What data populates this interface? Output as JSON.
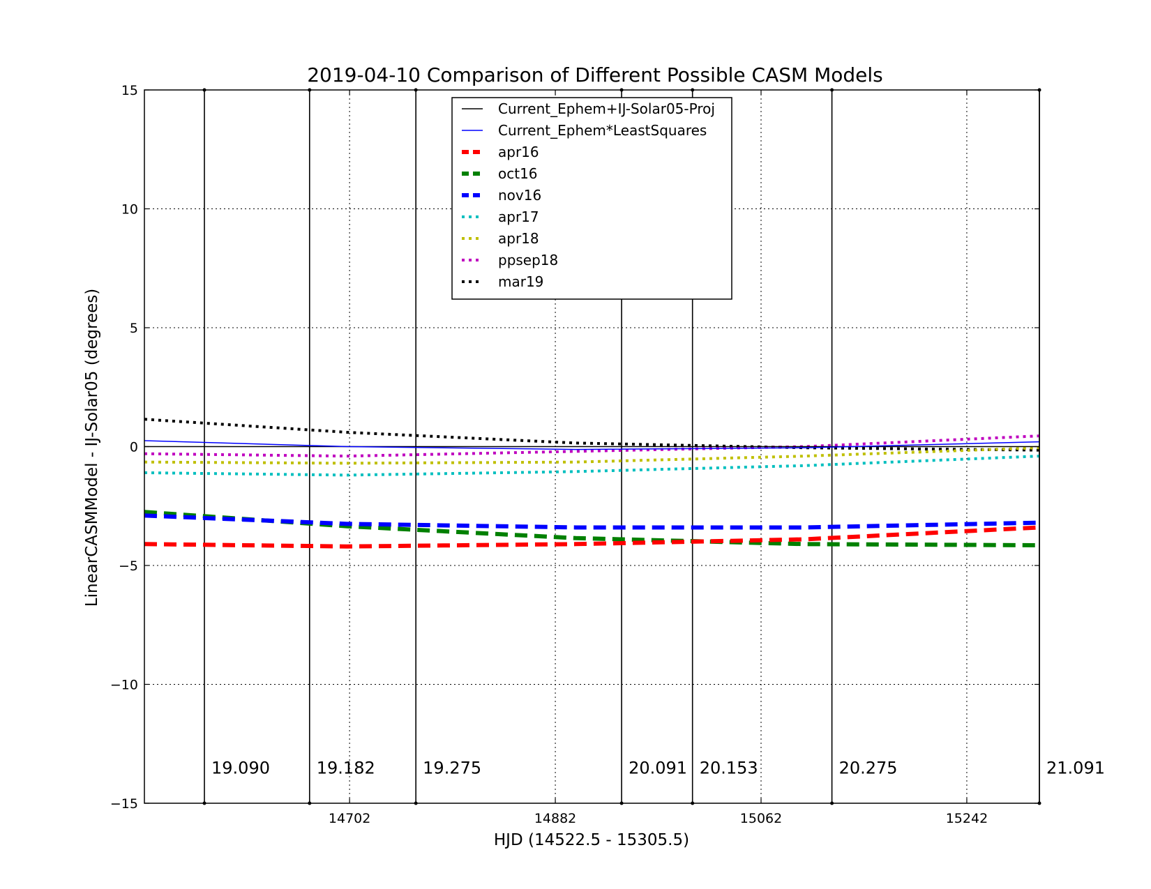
{
  "chart_data": {
    "type": "line",
    "title": "2019-04-10 Comparison of Different Possible CASM Models",
    "xlabel": "HJD (14522.5 - 15305.5)",
    "ylabel": "LinearCASMModel - IJ-Solar05 (degrees)",
    "xlim": [
      14522.5,
      15305.5
    ],
    "ylim": [
      -15,
      15
    ],
    "grid": true,
    "legend_position": "upper center",
    "x_ticks": [
      14702,
      14882,
      15062,
      15242
    ],
    "x_tick_labels": [
      "14702",
      "14882",
      "15062",
      "15242"
    ],
    "y_ticks": [
      -15,
      -10,
      -5,
      0,
      5,
      10,
      15
    ],
    "y_tick_labels": [
      "−15",
      "−10",
      "−5",
      "0",
      "5",
      "10",
      "15"
    ],
    "vertical_markers": [
      {
        "x": 14575,
        "label": "19.090"
      },
      {
        "x": 14667,
        "label": "19.182"
      },
      {
        "x": 14760,
        "label": "19.275"
      },
      {
        "x": 14940,
        "label": "20.091"
      },
      {
        "x": 15002,
        "label": "20.153"
      },
      {
        "x": 15124,
        "label": "20.275"
      },
      {
        "x": 15305.5,
        "label": "21.091"
      }
    ],
    "x": [
      14522.5,
      14700,
      14900,
      15100,
      15305.5
    ],
    "series": [
      {
        "name": "Current_Ephem+IJ-Solar05-Proj",
        "color": "#000000",
        "style": "solid",
        "values": [
          0.0,
          0.0,
          0.0,
          0.0,
          0.0
        ]
      },
      {
        "name": "Current_Ephem*LeastSquares",
        "color": "#0000ff",
        "style": "solid",
        "values": [
          0.25,
          0.0,
          -0.12,
          -0.05,
          0.2
        ]
      },
      {
        "name": "apr16",
        "color": "#ff0000",
        "style": "dashed",
        "values": [
          -4.1,
          -4.2,
          -4.1,
          -3.9,
          -3.4
        ]
      },
      {
        "name": "oct16",
        "color": "#008000",
        "style": "dashed",
        "values": [
          -2.75,
          -3.35,
          -3.85,
          -4.1,
          -4.15
        ]
      },
      {
        "name": "nov16",
        "color": "#0000ff",
        "style": "dashed",
        "values": [
          -2.9,
          -3.25,
          -3.4,
          -3.4,
          -3.2
        ]
      },
      {
        "name": "apr17",
        "color": "#00bfbf",
        "style": "dotted",
        "values": [
          -1.1,
          -1.2,
          -1.05,
          -0.8,
          -0.4
        ]
      },
      {
        "name": "apr18",
        "color": "#bfbf00",
        "style": "dotted",
        "values": [
          -0.65,
          -0.7,
          -0.65,
          -0.4,
          -0.05
        ]
      },
      {
        "name": "ppsep18",
        "color": "#bf00bf",
        "style": "dotted",
        "values": [
          -0.3,
          -0.4,
          -0.2,
          0.0,
          0.45
        ]
      },
      {
        "name": "mar19",
        "color": "#000000",
        "style": "dotted",
        "values": [
          1.15,
          0.6,
          0.15,
          -0.05,
          -0.15
        ]
      }
    ]
  }
}
